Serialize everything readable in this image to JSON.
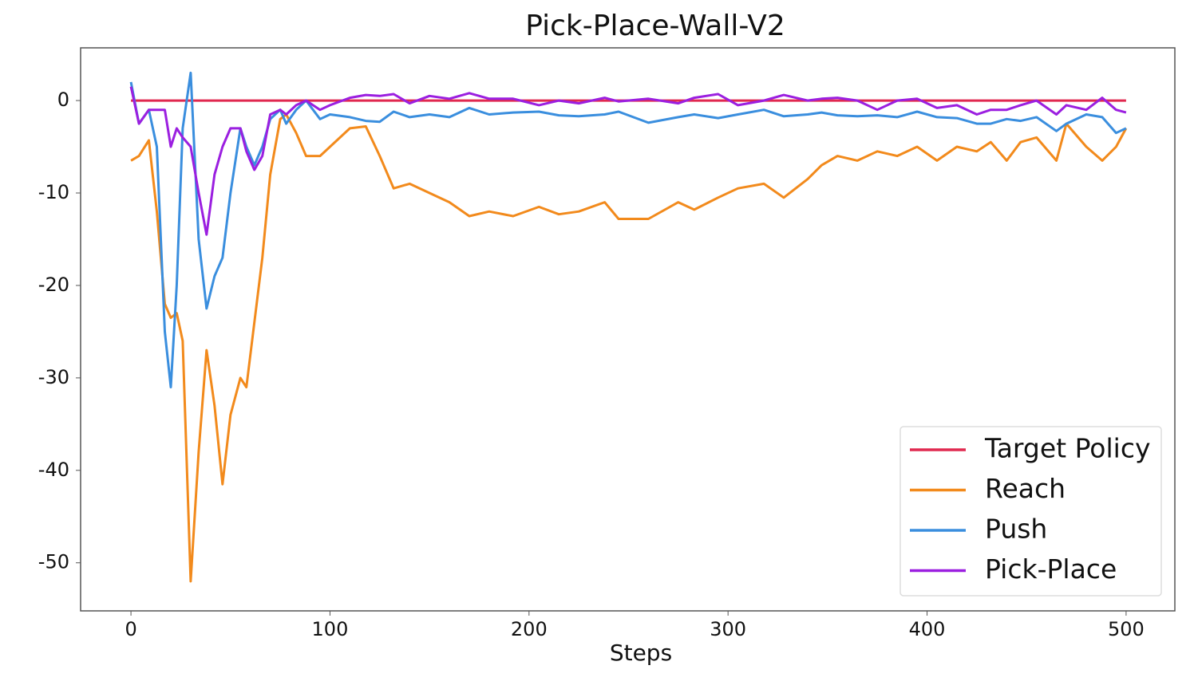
{
  "chart_data": {
    "type": "line",
    "title": "Pick-Place-Wall-V2",
    "x_label": "Steps",
    "x": [
      0,
      4,
      9,
      13,
      17,
      20,
      23,
      26,
      30,
      34,
      38,
      42,
      46,
      50,
      55,
      58,
      62,
      66,
      70,
      75,
      78,
      83,
      88,
      95,
      100,
      110,
      118,
      125,
      132,
      140,
      150,
      160,
      170,
      180,
      192,
      205,
      215,
      225,
      238,
      245,
      260,
      275,
      283,
      295,
      305,
      318,
      328,
      340,
      347,
      355,
      365,
      375,
      385,
      395,
      405,
      415,
      425,
      432,
      440,
      447,
      455,
      465,
      470,
      480,
      488,
      495,
      500
    ],
    "series": [
      {
        "name": "Target Policy",
        "color": "#e0284f",
        "values": [
          0,
          0,
          0,
          0,
          0,
          0,
          0,
          0,
          0,
          0,
          0,
          0,
          0,
          0,
          0,
          0,
          0,
          0,
          0,
          0,
          0,
          0,
          0,
          0,
          0,
          0,
          0,
          0,
          0,
          0,
          0,
          0,
          0,
          0,
          0,
          0,
          0,
          0,
          0,
          0,
          0,
          0,
          0,
          0,
          0,
          0,
          0,
          0,
          0,
          0,
          0,
          0,
          0,
          0,
          0,
          0,
          0,
          0,
          0,
          0,
          0,
          0,
          0,
          0,
          0,
          0,
          0
        ]
      },
      {
        "name": "Reach",
        "color": "#f28a1c",
        "values": [
          -6.5,
          -6,
          -4.3,
          -12,
          -22,
          -23.5,
          -23,
          -26,
          -52,
          -38,
          -27,
          -33,
          -41.5,
          -34,
          -30,
          -31,
          -24,
          -17,
          -8,
          -2,
          -1.5,
          -3.5,
          -6,
          -6,
          -5,
          -3,
          -2.8,
          -6,
          -9.5,
          -9,
          -10,
          -11,
          -12.5,
          -12,
          -12.5,
          -11.5,
          -12.3,
          -12,
          -11,
          -12.8,
          -12.8,
          -11,
          -11.8,
          -10.5,
          -9.5,
          -9,
          -10.5,
          -8.5,
          -7,
          -6,
          -6.5,
          -5.5,
          -6,
          -5,
          -6.5,
          -5,
          -5.5,
          -4.5,
          -6.5,
          -4.5,
          -4,
          -6.5,
          -2.5,
          -5,
          -6.5,
          -5,
          -3
        ]
      },
      {
        "name": "Push",
        "color": "#3a8ede",
        "values": [
          2,
          -2.5,
          -1,
          -5,
          -25,
          -31,
          -20,
          -3,
          3,
          -15,
          -22.5,
          -19,
          -17,
          -10,
          -3,
          -5,
          -7,
          -5,
          -2,
          -1,
          -2.5,
          -1,
          0,
          -2,
          -1.5,
          -1.8,
          -2.2,
          -2.3,
          -1.2,
          -1.8,
          -1.5,
          -1.8,
          -0.8,
          -1.5,
          -1.3,
          -1.2,
          -1.6,
          -1.7,
          -1.5,
          -1.2,
          -2.4,
          -1.8,
          -1.5,
          -1.9,
          -1.5,
          -1,
          -1.7,
          -1.5,
          -1.3,
          -1.6,
          -1.7,
          -1.6,
          -1.8,
          -1.2,
          -1.8,
          -1.9,
          -2.5,
          -2.5,
          -2,
          -2.2,
          -1.8,
          -3.3,
          -2.5,
          -1.5,
          -1.8,
          -3.5,
          -3
        ]
      },
      {
        "name": "Pick-Place",
        "color": "#9b1fe0",
        "values": [
          1.5,
          -2.5,
          -1,
          -1,
          -1,
          -5,
          -3,
          -4,
          -5,
          -10,
          -14.5,
          -8,
          -5,
          -3,
          -3,
          -5.5,
          -7.5,
          -6,
          -1.5,
          -1,
          -1.5,
          -0.5,
          0,
          -1,
          -0.5,
          0.3,
          0.6,
          0.5,
          0.7,
          -0.3,
          0.5,
          0.2,
          0.8,
          0.2,
          0.2,
          -0.5,
          0,
          -0.3,
          0.3,
          -0.1,
          0.2,
          -0.3,
          0.3,
          0.7,
          -0.5,
          0,
          0.6,
          0,
          0.2,
          0.3,
          0,
          -1,
          0,
          0.2,
          -0.8,
          -0.5,
          -1.5,
          -1,
          -1,
          -0.5,
          0,
          -1.5,
          -0.5,
          -1,
          0.3,
          -1,
          -1.3
        ]
      }
    ],
    "xlim": [
      -25.3,
      524.5
    ],
    "ylim": [
      -55.2,
      5.7
    ],
    "xticks": [
      0,
      100,
      200,
      300,
      400,
      500
    ],
    "yticks": [
      0,
      -10,
      -20,
      -30,
      -40,
      -50
    ],
    "grid": false,
    "legend": "lower right"
  }
}
